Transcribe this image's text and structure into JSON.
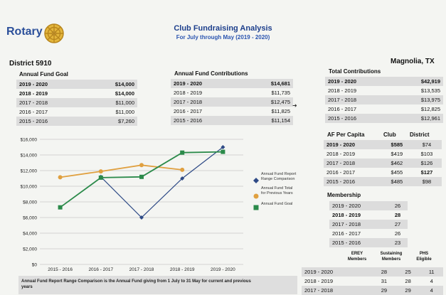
{
  "header": {
    "logo": "Rotary",
    "title": "Club Fundraising Analysis",
    "subtitle": "For July through May (2019 - 2020)",
    "district": "District 5910",
    "location": "Magnolia, TX"
  },
  "annual_fund_goal": {
    "heading": "Annual Fund Goal",
    "rows": [
      {
        "year": "2019 - 2020",
        "value": "$14,000"
      },
      {
        "year": "2018 - 2019",
        "value": "$14,000"
      },
      {
        "year": "2017 - 2018",
        "value": "$11,000"
      },
      {
        "year": "2016 - 2017",
        "value": "$11,000"
      },
      {
        "year": "2015 - 2016",
        "value": "$7,260"
      }
    ]
  },
  "annual_fund_contributions": {
    "heading": "Annual Fund Contributions",
    "rows": [
      {
        "year": "2019 - 2020",
        "value": "$14,681"
      },
      {
        "year": "2018 - 2019",
        "value": "$11,735"
      },
      {
        "year": "2017 - 2018",
        "value": "$12,475"
      },
      {
        "year": "2016 - 2017",
        "value": "$11,825"
      },
      {
        "year": "2015 - 2016",
        "value": "$11,154"
      }
    ]
  },
  "total_contributions": {
    "heading": "Total Contributions",
    "rows": [
      {
        "year": "2019 - 2020",
        "value": "$42,919"
      },
      {
        "year": "2018 - 2019",
        "value": "$13,535"
      },
      {
        "year": "2017 - 2018",
        "value": "$13,975"
      },
      {
        "year": "2016 - 2017",
        "value": "$12,825"
      },
      {
        "year": "2015 - 2016",
        "value": "$12,961"
      }
    ]
  },
  "af_per_capita": {
    "heading": "AF Per Capita",
    "col_club": "Club",
    "col_district": "District",
    "rows": [
      {
        "year": "2019 - 2020",
        "club": "$585",
        "district": "$74"
      },
      {
        "year": "2018 - 2019",
        "club": "$419",
        "district": "$103"
      },
      {
        "year": "2017 - 2018",
        "club": "$462",
        "district": "$126"
      },
      {
        "year": "2016 - 2017",
        "club": "$455",
        "district": "$127"
      },
      {
        "year": "2015 - 2016",
        "club": "$485",
        "district": "$98"
      }
    ]
  },
  "membership": {
    "heading": "Membership",
    "rows": [
      {
        "year": "2019 - 2020",
        "value": "26"
      },
      {
        "year": "2018 - 2019",
        "value": "28"
      },
      {
        "year": "2017 - 2018",
        "value": "27"
      },
      {
        "year": "2016 - 2017",
        "value": "26"
      },
      {
        "year": "2015 - 2016",
        "value": "23"
      }
    ]
  },
  "members_table": {
    "col_erey": "EREY Members",
    "col_sustaining": "Sustaining Members",
    "col_phs": "PHS Eligible",
    "rows": [
      {
        "year": "2019 - 2020",
        "erey": "28",
        "sustaining": "25",
        "phs": "11"
      },
      {
        "year": "2018 - 2019",
        "erey": "31",
        "sustaining": "28",
        "phs": "4"
      },
      {
        "year": "2017 - 2018",
        "erey": "29",
        "sustaining": "29",
        "phs": "4"
      }
    ]
  },
  "note": "Annual Fund Report Range Comparison is the Annual Fund giving from 1 July to 31 May for current and previous years",
  "chart_data": {
    "type": "line",
    "categories": [
      "2015 - 2016",
      "2016 - 2017",
      "2017 - 2018",
      "2018 - 2019",
      "2019 - 2020"
    ],
    "ylim": [
      0,
      16000
    ],
    "yticks": [
      "$0",
      "$2,000",
      "$4,000",
      "$6,000",
      "$8,000",
      "$10,000",
      "$12,000",
      "$14,000",
      "$16,000"
    ],
    "grid": true,
    "legend_position": "right",
    "series": [
      {
        "name": "Annual Fund Report Range Comparison",
        "color": "#2e4a86",
        "marker": "diamond",
        "values": [
          null,
          11200,
          6000,
          11000,
          15000
        ]
      },
      {
        "name": "Annual Fund Total for Previous Years",
        "color": "#e0a040",
        "marker": "circle",
        "values": [
          11150,
          11900,
          12700,
          12100,
          null
        ]
      },
      {
        "name": "Annual Fund Goal",
        "color": "#2b8a4a",
        "marker": "square",
        "values": [
          7300,
          11100,
          11200,
          14300,
          14400
        ]
      }
    ]
  }
}
